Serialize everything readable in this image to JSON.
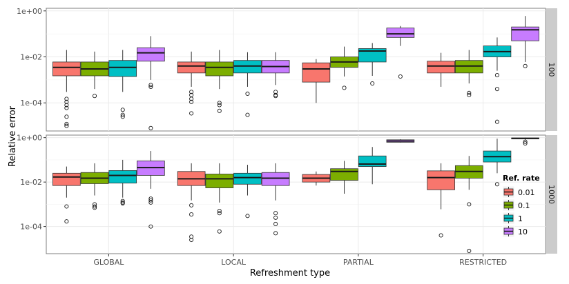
{
  "chart_data": {
    "type": "boxplot",
    "xlabel": "Refreshment type",
    "ylabel": "Relative error",
    "y_scale": "log10",
    "ylim": [
      6e-06,
      1.3
    ],
    "y_ticks": [
      {
        "value": 1,
        "label": "1e+00"
      },
      {
        "value": 0.01,
        "label": "1e-02"
      },
      {
        "value": 0.0001,
        "label": "1e-04"
      }
    ],
    "categories": [
      "GLOBAL",
      "LOCAL",
      "PARTIAL",
      "RESTRICTED"
    ],
    "legend": {
      "title": "Ref. rate",
      "placement": "right",
      "entries": [
        {
          "name": "0.01",
          "color": "#F8766D"
        },
        {
          "name": "0.1",
          "color": "#7CAE00"
        },
        {
          "name": "1",
          "color": "#00BFC4"
        },
        {
          "name": "10",
          "color": "#C77CFF"
        }
      ]
    },
    "facets": [
      {
        "label": "100",
        "boxes": [
          {
            "category": "GLOBAL",
            "series": "0.01",
            "q1": 0.0015,
            "median": 0.0035,
            "q3": 0.006,
            "whisker_low": 0.0003,
            "whisker_high": 0.02,
            "outliers": [
              0.00015,
              0.00011,
              8e-05,
              6e-05,
              2.5e-05,
              1.2e-05,
              1e-05
            ]
          },
          {
            "category": "GLOBAL",
            "series": "0.1",
            "q1": 0.0015,
            "median": 0.003,
            "q3": 0.006,
            "whisker_low": 0.0004,
            "whisker_high": 0.017,
            "outliers": [
              0.0002
            ]
          },
          {
            "category": "GLOBAL",
            "series": "1",
            "q1": 0.0014,
            "median": 0.0035,
            "q3": 0.007,
            "whisker_low": 0.0003,
            "whisker_high": 0.02,
            "outliers": [
              5e-05,
              3e-05,
              2.5e-05
            ]
          },
          {
            "category": "GLOBAL",
            "series": "10",
            "q1": 0.0065,
            "median": 0.015,
            "q3": 0.025,
            "whisker_low": 0.001,
            "whisker_high": 0.08,
            "outliers": [
              0.0006,
              0.0005,
              8e-06
            ]
          },
          {
            "category": "LOCAL",
            "series": "0.01",
            "q1": 0.002,
            "median": 0.004,
            "q3": 0.006,
            "whisker_low": 0.0005,
            "whisker_high": 0.017,
            "outliers": [
              0.0003,
              0.00022,
              0.00015,
              0.00011,
              3.5e-05
            ]
          },
          {
            "category": "LOCAL",
            "series": "0.1",
            "q1": 0.0015,
            "median": 0.0035,
            "q3": 0.006,
            "whisker_low": 0.0004,
            "whisker_high": 0.02,
            "outliers": [
              0.0001,
              8e-05,
              4.5e-05
            ]
          },
          {
            "category": "LOCAL",
            "series": "1",
            "q1": 0.002,
            "median": 0.004,
            "q3": 0.007,
            "whisker_low": 0.0005,
            "whisker_high": 0.016,
            "outliers": [
              0.00025,
              3e-05
            ]
          },
          {
            "category": "LOCAL",
            "series": "10",
            "q1": 0.002,
            "median": 0.0038,
            "q3": 0.007,
            "whisker_low": 0.0006,
            "whisker_high": 0.016,
            "outliers": [
              0.0003,
              0.00022,
              0.0002
            ]
          },
          {
            "category": "PARTIAL",
            "series": "0.01",
            "q1": 0.0008,
            "median": 0.003,
            "q3": 0.0055,
            "whisker_low": 0.0001,
            "whisker_high": 0.008,
            "outliers": []
          },
          {
            "category": "PARTIAL",
            "series": "0.1",
            "q1": 0.0035,
            "median": 0.006,
            "q3": 0.01,
            "whisker_low": 0.0014,
            "whisker_high": 0.028,
            "outliers": [
              0.00045
            ]
          },
          {
            "category": "PARTIAL",
            "series": "1",
            "q1": 0.006,
            "median": 0.018,
            "q3": 0.023,
            "whisker_low": 0.0015,
            "whisker_high": 0.04,
            "outliers": [
              0.0007
            ]
          },
          {
            "category": "PARTIAL",
            "series": "10",
            "q1": 0.07,
            "median": 0.1,
            "q3": 0.18,
            "whisker_low": 0.03,
            "whisker_high": 0.22,
            "outliers": [
              0.0014
            ]
          },
          {
            "category": "RESTRICTED",
            "series": "0.01",
            "q1": 0.002,
            "median": 0.004,
            "q3": 0.0065,
            "whisker_low": 0.0005,
            "whisker_high": 0.015,
            "outliers": []
          },
          {
            "category": "RESTRICTED",
            "series": "0.1",
            "q1": 0.002,
            "median": 0.004,
            "q3": 0.007,
            "whisker_low": 0.0007,
            "whisker_high": 0.02,
            "outliers": [
              0.00027,
              0.00022
            ]
          },
          {
            "category": "RESTRICTED",
            "series": "1",
            "q1": 0.01,
            "median": 0.017,
            "q3": 0.03,
            "whisker_low": 0.0025,
            "whisker_high": 0.07,
            "outliers": [
              0.0016,
              0.0004,
              1.5e-05
            ]
          },
          {
            "category": "RESTRICTED",
            "series": "10",
            "q1": 0.05,
            "median": 0.15,
            "q3": 0.2,
            "whisker_low": 0.006,
            "whisker_high": 0.6,
            "outliers": [
              0.004
            ]
          }
        ]
      },
      {
        "label": "1000",
        "boxes": [
          {
            "category": "GLOBAL",
            "series": "0.01",
            "q1": 0.007,
            "median": 0.017,
            "q3": 0.025,
            "whisker_low": 0.002,
            "whisker_high": 0.05,
            "outliers": [
              0.0008,
              0.00017
            ]
          },
          {
            "category": "GLOBAL",
            "series": "0.1",
            "q1": 0.0085,
            "median": 0.015,
            "q3": 0.027,
            "whisker_low": 0.0025,
            "whisker_high": 0.07,
            "outliers": [
              0.001,
              0.0008,
              0.0007
            ]
          },
          {
            "category": "GLOBAL",
            "series": "1",
            "q1": 0.009,
            "median": 0.02,
            "q3": 0.033,
            "whisker_low": 0.002,
            "whisker_high": 0.1,
            "outliers": [
              0.0014,
              0.0012,
              0.0011
            ]
          },
          {
            "category": "GLOBAL",
            "series": "10",
            "q1": 0.02,
            "median": 0.045,
            "q3": 0.09,
            "whisker_low": 0.005,
            "whisker_high": 0.25,
            "outliers": [
              0.0018,
              0.0015,
              0.0012,
              0.0001
            ]
          },
          {
            "category": "LOCAL",
            "series": "0.01",
            "q1": 0.007,
            "median": 0.014,
            "q3": 0.03,
            "whisker_low": 0.0015,
            "whisker_high": 0.07,
            "outliers": [
              0.0009,
              0.00035,
              3.5e-05,
              2.5e-05
            ]
          },
          {
            "category": "LOCAL",
            "series": "0.1",
            "q1": 0.0055,
            "median": 0.014,
            "q3": 0.023,
            "whisker_low": 0.0012,
            "whisker_high": 0.07,
            "outliers": [
              0.0005,
              0.0004,
              6e-05
            ]
          },
          {
            "category": "LOCAL",
            "series": "1",
            "q1": 0.008,
            "median": 0.016,
            "q3": 0.025,
            "whisker_low": 0.0025,
            "whisker_high": 0.06,
            "outliers": [
              0.0003
            ]
          },
          {
            "category": "LOCAL",
            "series": "10",
            "q1": 0.007,
            "median": 0.015,
            "q3": 0.027,
            "whisker_low": 0.0015,
            "whisker_high": 0.07,
            "outliers": [
              0.0004,
              0.00025,
              0.00013,
              5e-05
            ]
          },
          {
            "category": "PARTIAL",
            "series": "0.01",
            "q1": 0.01,
            "median": 0.015,
            "q3": 0.022,
            "whisker_low": 0.007,
            "whisker_high": 0.03,
            "outliers": []
          },
          {
            "category": "PARTIAL",
            "series": "0.1",
            "q1": 0.012,
            "median": 0.03,
            "q3": 0.04,
            "whisker_low": 0.003,
            "whisker_high": 0.09,
            "outliers": []
          },
          {
            "category": "PARTIAL",
            "series": "1",
            "q1": 0.05,
            "median": 0.065,
            "q3": 0.15,
            "whisker_low": 0.008,
            "whisker_high": 0.38,
            "outliers": []
          },
          {
            "category": "PARTIAL",
            "series": "10",
            "q1": 0.62,
            "median": 0.7,
            "q3": 0.8,
            "whisker_low": 0.6,
            "whisker_high": 0.85,
            "outliers": []
          },
          {
            "category": "RESTRICTED",
            "series": "0.01",
            "q1": 0.0045,
            "median": 0.016,
            "q3": 0.032,
            "whisker_low": 0.0006,
            "whisker_high": 0.07,
            "outliers": [
              4e-05
            ]
          },
          {
            "category": "RESTRICTED",
            "series": "0.1",
            "q1": 0.015,
            "median": 0.03,
            "q3": 0.055,
            "whisker_low": 0.0045,
            "whisker_high": 0.15,
            "outliers": [
              0.001,
              8e-06
            ]
          },
          {
            "category": "RESTRICTED",
            "series": "1",
            "q1": 0.08,
            "median": 0.14,
            "q3": 0.25,
            "whisker_low": 0.025,
            "whisker_high": 0.9,
            "outliers": [
              0.008
            ]
          },
          {
            "category": "RESTRICTED",
            "series": "10",
            "q1": 0.88,
            "median": 0.93,
            "q3": 0.97,
            "whisker_low": 0.8,
            "whisker_high": 1.0,
            "outliers": [
              0.65,
              0.55
            ]
          }
        ]
      }
    ]
  }
}
